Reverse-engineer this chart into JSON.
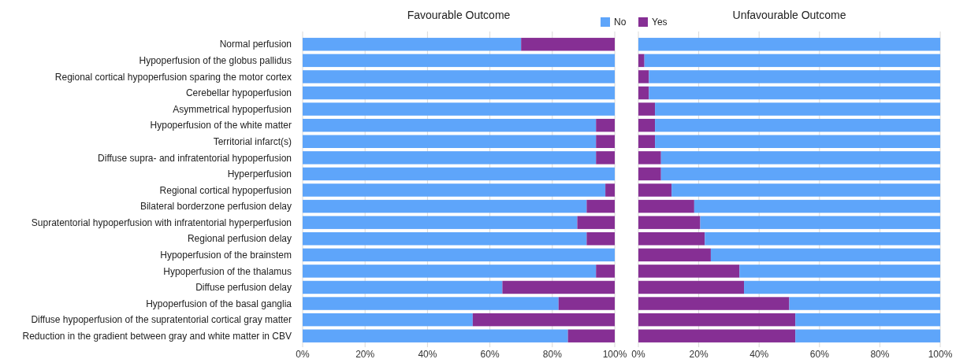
{
  "chart_data": [
    {
      "type": "bar",
      "orientation": "horizontal",
      "stacked": true,
      "title": "Favourable Outcome",
      "categories": [
        "Normal perfusion",
        "Hypoperfusion of the globus pallidus",
        "Regional cortical hypoperfusion sparing the motor cortex",
        "Cerebellar hypoperfusion",
        "Asymmetrical hypoperfusion",
        "Hypoperfusion of the white matter",
        "Territorial infarct(s)",
        "Diffuse supra- and infratentorial hypoperfusion",
        "Hyperperfusion",
        "Regional cortical hypoperfusion",
        "Bilateral borderzone perfusion delay",
        "Supratentorial hypoperfusion with infratentorial hyperperfusion",
        "Regional perfusion delay",
        "Hypoperfusion of the brainstem",
        "Hypoperfusion of the thalamus",
        "Diffuse perfusion delay",
        "Hypoperfusion of the basal ganglia",
        "Diffuse hypoperfusion of the supratentorial cortical gray matter",
        "Reduction in the gradient between gray and white matter in CBV"
      ],
      "series": [
        {
          "name": "No",
          "color": "#5ea5fa",
          "values": [
            70,
            100,
            100,
            100,
            100,
            94,
            94,
            94,
            100,
            97,
            91,
            88,
            91,
            100,
            94,
            64,
            82,
            54.5,
            85
          ]
        },
        {
          "name": "Yes",
          "color": "#862f94",
          "values": [
            30,
            0,
            0,
            0,
            0,
            6,
            6,
            6,
            0,
            3,
            9,
            12,
            9,
            0,
            6,
            36,
            18,
            45.5,
            15
          ]
        }
      ],
      "xlim": [
        0,
        100
      ],
      "xticks": [
        {
          "value": 0,
          "label": "0%"
        },
        {
          "value": 20,
          "label": "20%"
        },
        {
          "value": 40,
          "label": "40%"
        },
        {
          "value": 60,
          "label": "60%"
        },
        {
          "value": 80,
          "label": "80%"
        },
        {
          "value": 100,
          "label": "100%"
        }
      ],
      "grid": "x",
      "legend": "top right"
    },
    {
      "type": "bar",
      "orientation": "horizontal",
      "stacked": true,
      "title": "Unfavourable Outcome",
      "categories": [
        null,
        null,
        null,
        null,
        null,
        null,
        null,
        null,
        null,
        null,
        null,
        null,
        null,
        null,
        null,
        null,
        null,
        null,
        null
      ],
      "series": [
        {
          "color": "#862f94",
          "values": [
            0,
            2,
            3.5,
            3.5,
            5.5,
            5.5,
            5.5,
            7.5,
            7.5,
            11,
            18.5,
            20.5,
            22,
            24,
            33.5,
            35,
            50,
            52,
            52
          ]
        },
        {
          "color": "#5ea5fa",
          "values": [
            100,
            98,
            96.5,
            96.5,
            94.5,
            94.5,
            94.5,
            92.5,
            92.5,
            89,
            81.5,
            79.5,
            78,
            76,
            66.5,
            65,
            50,
            48,
            48
          ]
        }
      ],
      "xlim": [
        0,
        100
      ],
      "xticks": [
        {
          "value": 0,
          "label": "0%"
        },
        {
          "value": 20,
          "label": "20%"
        },
        {
          "value": 40,
          "label": "40%"
        },
        {
          "value": 60,
          "label": "60%"
        },
        {
          "value": 80,
          "label": "80%"
        },
        {
          "value": 100,
          "label": "100%"
        }
      ],
      "grid": "x"
    }
  ]
}
